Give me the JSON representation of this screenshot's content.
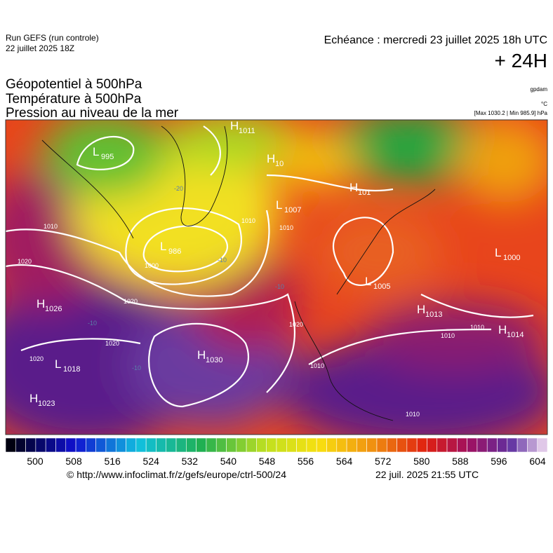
{
  "header": {
    "run": "Run GEFS (run controle)",
    "run_date": "22 juillet 2025 18Z",
    "echeance": "Echéance : mercredi 23 juillet 2025 18h UTC",
    "lead": "+ 24H"
  },
  "titles": [
    "Géopotentiel à 500hPa",
    "Température à 500hPa",
    "Pression au niveau de la mer"
  ],
  "units": {
    "geopotential": "gpdam",
    "temperature": "°C",
    "pressure": "[Max 1030.2 | Min 985.9] hPa"
  },
  "map_labels": [
    {
      "letter": "L",
      "value": "995"
    },
    {
      "letter": "H",
      "value": "1011"
    },
    {
      "letter": "H",
      "value": "10"
    },
    {
      "letter": "H",
      "value": "101"
    },
    {
      "letter": "L",
      "value": "1007"
    },
    {
      "letter": "L",
      "value": "986"
    },
    {
      "letter": "L",
      "value": "1005"
    },
    {
      "letter": "L",
      "value": "1000"
    },
    {
      "letter": "H",
      "value": "1013"
    },
    {
      "letter": "H",
      "value": "1014"
    },
    {
      "letter": "H",
      "value": "1026"
    },
    {
      "letter": "L",
      "value": "1018"
    },
    {
      "letter": "H",
      "value": "1030"
    },
    {
      "letter": "H",
      "value": "1023"
    }
  ],
  "isobar_labels": [
    "1010",
    "1020",
    "1000",
    "1010",
    "1020",
    "1020",
    "1020",
    "1020",
    "1010",
    "1010",
    "1010",
    "1010",
    "1010"
  ],
  "temperature_labels": [
    "-20",
    "-10",
    "-10",
    "-10",
    "-10"
  ],
  "colorbar_ticks": [
    500,
    508,
    516,
    524,
    532,
    540,
    548,
    556,
    564,
    572,
    580,
    588,
    596,
    604
  ],
  "footer": {
    "url": "© http://www.infoclimat.fr/z/gefs/europe/ctrl-500/24",
    "time": "22 juil. 2025 21:55 UTC"
  }
}
